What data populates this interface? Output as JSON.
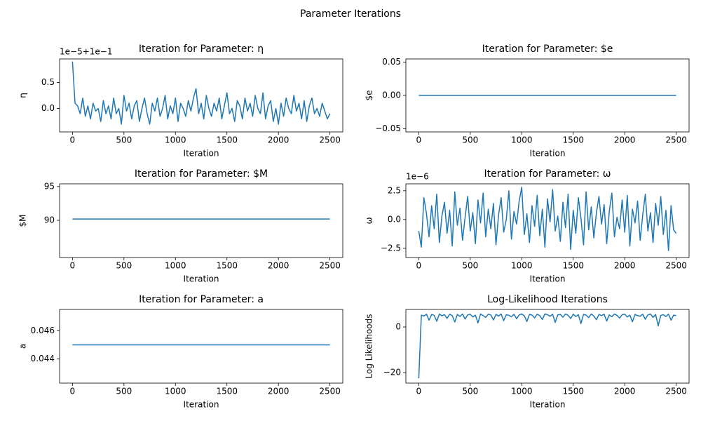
{
  "title": "Parameter Iterations",
  "chart_data": [
    {
      "type": "line",
      "title": "Iteration for Parameter: η",
      "xlabel": "Iteration",
      "ylabel": "η",
      "offset_label": "1e−5+1e−1",
      "color": "#1f77b4",
      "xlim": [
        -125,
        2625
      ],
      "xticks": [
        0,
        500,
        1000,
        1500,
        2000,
        2500
      ],
      "ylim": [
        -0.45,
        0.95
      ],
      "yticks": [
        {
          "value": 0,
          "label": "0.0"
        },
        0.5
      ],
      "x": [
        0,
        25,
        50,
        75,
        100,
        125,
        150,
        175,
        200,
        225,
        250,
        275,
        300,
        325,
        350,
        375,
        400,
        425,
        450,
        475,
        500,
        525,
        550,
        575,
        600,
        625,
        650,
        675,
        700,
        725,
        750,
        775,
        800,
        825,
        850,
        875,
        900,
        925,
        950,
        975,
        1000,
        1025,
        1050,
        1075,
        1100,
        1125,
        1150,
        1175,
        1200,
        1225,
        1250,
        1275,
        1300,
        1325,
        1350,
        1375,
        1400,
        1425,
        1450,
        1475,
        1500,
        1525,
        1550,
        1575,
        1600,
        1625,
        1650,
        1675,
        1700,
        1725,
        1750,
        1775,
        1800,
        1825,
        1850,
        1875,
        1900,
        1925,
        1950,
        1975,
        2000,
        2025,
        2050,
        2075,
        2100,
        2125,
        2150,
        2175,
        2200,
        2225,
        2250,
        2275,
        2300,
        2325,
        2350,
        2375,
        2400,
        2425,
        2450,
        2475,
        2500
      ],
      "values": [
        0.9,
        0.1,
        0.05,
        -0.1,
        0.2,
        -0.15,
        0.05,
        -0.2,
        0.1,
        -0.05,
        0.0,
        -0.25,
        0.15,
        -0.1,
        0.05,
        -0.2,
        0.2,
        -0.1,
        0.0,
        -0.3,
        0.25,
        -0.05,
        0.1,
        -0.2,
        0.05,
        0.15,
        -0.25,
        0.0,
        0.2,
        -0.1,
        -0.3,
        0.1,
        -0.05,
        0.2,
        -0.15,
        0.0,
        0.25,
        -0.2,
        0.05,
        -0.1,
        0.2,
        -0.25,
        0.1,
        0.0,
        -0.15,
        0.15,
        -0.05,
        0.2,
        0.38,
        -0.1,
        0.1,
        -0.2,
        0.25,
        0.0,
        -0.15,
        0.1,
        -0.05,
        0.2,
        -0.2,
        0.05,
        0.3,
        -0.1,
        0.0,
        -0.25,
        0.15,
        0.05,
        -0.2,
        0.2,
        -0.05,
        0.1,
        -0.15,
        0.25,
        0.0,
        -0.1,
        0.3,
        -0.2,
        0.05,
        0.15,
        -0.25,
        0.0,
        -0.3,
        0.1,
        -0.15,
        0.2,
        0.0,
        -0.1,
        0.25,
        -0.05,
        0.1,
        -0.2,
        0.15,
        -0.25,
        0.05,
        0.2,
        -0.1,
        0.0,
        -0.15,
        0.1,
        -0.05,
        -0.2,
        -0.1
      ]
    },
    {
      "type": "line",
      "title": "Iteration for Parameter: $e",
      "xlabel": "Iteration",
      "ylabel": "$e",
      "color": "#1f77b4",
      "xlim": [
        -125,
        2625
      ],
      "xticks": [
        0,
        500,
        1000,
        1500,
        2000,
        2500
      ],
      "ylim": [
        -0.055,
        0.055
      ],
      "yticks": [
        {
          "value": -0.05,
          "label": "−0.05"
        },
        {
          "value": 0,
          "label": "0.00"
        },
        0.05
      ],
      "x": [
        0,
        2500
      ],
      "values": [
        0,
        0
      ]
    },
    {
      "type": "line",
      "title": "Iteration for Parameter: $M",
      "xlabel": "Iteration",
      "ylabel": "$M",
      "color": "#1f77b4",
      "xlim": [
        -125,
        2625
      ],
      "xticks": [
        0,
        500,
        1000,
        1500,
        2000,
        2500
      ],
      "ylim": [
        84.5,
        95.4
      ],
      "yticks": [
        90,
        95
      ],
      "x": [
        0,
        2500
      ],
      "values": [
        90.2,
        90.2
      ]
    },
    {
      "type": "line",
      "title": "Iteration for Parameter: ω",
      "xlabel": "Iteration",
      "ylabel": "ω",
      "offset_label": "1e−6",
      "color": "#1f77b4",
      "xlim": [
        -125,
        2625
      ],
      "xticks": [
        0,
        500,
        1000,
        1500,
        2000,
        2500
      ],
      "ylim": [
        -3.3,
        3.1
      ],
      "yticks": [
        {
          "value": -2.5,
          "label": "−2.5"
        },
        {
          "value": 0,
          "label": "0.0"
        },
        2.5
      ],
      "x": [
        0,
        25,
        50,
        75,
        100,
        125,
        150,
        175,
        200,
        225,
        250,
        275,
        300,
        325,
        350,
        375,
        400,
        425,
        450,
        475,
        500,
        525,
        550,
        575,
        600,
        625,
        650,
        675,
        700,
        725,
        750,
        775,
        800,
        825,
        850,
        875,
        900,
        925,
        950,
        975,
        1000,
        1025,
        1050,
        1075,
        1100,
        1125,
        1150,
        1175,
        1200,
        1225,
        1250,
        1275,
        1300,
        1325,
        1350,
        1375,
        1400,
        1425,
        1450,
        1475,
        1500,
        1525,
        1550,
        1575,
        1600,
        1625,
        1650,
        1675,
        1700,
        1725,
        1750,
        1775,
        1800,
        1825,
        1850,
        1875,
        1900,
        1925,
        1950,
        1975,
        2000,
        2025,
        2050,
        2075,
        2100,
        2125,
        2150,
        2175,
        2200,
        2225,
        2250,
        2275,
        2300,
        2325,
        2350,
        2375,
        2400,
        2425,
        2450,
        2475,
        2500
      ],
      "values": [
        -1.0,
        -2.4,
        1.9,
        0.5,
        -1.5,
        1.2,
        -0.8,
        2.2,
        -2.0,
        0.3,
        1.5,
        -1.2,
        0.8,
        -2.3,
        2.4,
        -0.5,
        1.0,
        -1.8,
        0.2,
        2.0,
        -1.0,
        0.6,
        -2.1,
        1.7,
        -0.3,
        2.3,
        -1.5,
        0.9,
        -0.8,
        1.4,
        -2.2,
        0.4,
        1.9,
        -1.1,
        0.0,
        2.5,
        -1.7,
        0.7,
        -0.4,
        1.6,
        2.8,
        -1.3,
        0.5,
        -2.0,
        1.2,
        -0.6,
        2.1,
        -1.4,
        0.9,
        -2.4,
        1.8,
        -0.2,
        2.6,
        -1.0,
        0.3,
        -1.9,
        1.5,
        -0.7,
        2.2,
        -2.6,
        0.8,
        -1.2,
        1.9,
        0.1,
        -2.2,
        2.4,
        -0.9,
        1.1,
        -1.6,
        0.6,
        2.0,
        -0.4,
        1.3,
        -2.1,
        0.7,
        2.3,
        -1.5,
        0.2,
        -0.8,
        1.7,
        -1.1,
        2.1,
        -2.3,
        0.9,
        -0.3,
        1.6,
        -1.8,
        0.4,
        2.2,
        -1.0,
        0.6,
        -2.0,
        1.4,
        -0.5,
        2.0,
        -1.3,
        0.8,
        -2.7,
        1.2,
        -0.9,
        -1.2
      ]
    },
    {
      "type": "line",
      "title": "Iteration for Parameter: a",
      "xlabel": "Iteration",
      "ylabel": "a",
      "color": "#1f77b4",
      "xlim": [
        -125,
        2625
      ],
      "xticks": [
        0,
        500,
        1000,
        1500,
        2000,
        2500
      ],
      "ylim": [
        0.0423,
        0.0475
      ],
      "yticks": [
        0.044,
        0.046
      ],
      "x": [
        0,
        2500
      ],
      "values": [
        0.045,
        0.045
      ]
    },
    {
      "type": "line",
      "title": "Log-Likelihood Iterations",
      "xlabel": "Iteration",
      "ylabel": "Log Likelihoods",
      "color": "#1f77b4",
      "xlim": [
        -125,
        2625
      ],
      "xticks": [
        0,
        500,
        1000,
        1500,
        2000,
        2500
      ],
      "ylim": [
        -24.6,
        7.7
      ],
      "yticks": [
        {
          "value": -20,
          "label": "−20"
        },
        0
      ],
      "x": [
        0,
        25,
        50,
        75,
        100,
        125,
        150,
        175,
        200,
        225,
        250,
        275,
        300,
        325,
        350,
        375,
        400,
        425,
        450,
        475,
        500,
        525,
        550,
        575,
        600,
        625,
        650,
        675,
        700,
        725,
        750,
        775,
        800,
        825,
        850,
        875,
        900,
        925,
        950,
        975,
        1000,
        1025,
        1050,
        1075,
        1100,
        1125,
        1150,
        1175,
        1200,
        1225,
        1250,
        1275,
        1300,
        1325,
        1350,
        1375,
        1400,
        1425,
        1450,
        1475,
        1500,
        1525,
        1550,
        1575,
        1600,
        1625,
        1650,
        1675,
        1700,
        1725,
        1750,
        1775,
        1800,
        1825,
        1850,
        1875,
        1900,
        1925,
        1950,
        1975,
        2000,
        2025,
        2050,
        2075,
        2100,
        2125,
        2150,
        2175,
        2200,
        2225,
        2250,
        2275,
        2300,
        2325,
        2350,
        2375,
        2400,
        2425,
        2450,
        2475,
        2500
      ],
      "values": [
        -22.5,
        5.2,
        4.8,
        5.6,
        3.0,
        5.5,
        5.1,
        2.5,
        5.7,
        4.9,
        5.4,
        3.8,
        5.6,
        5.0,
        2.2,
        5.5,
        4.6,
        5.7,
        3.5,
        5.3,
        5.6,
        4.4,
        5.2,
        1.8,
        5.7,
        5.0,
        4.2,
        5.6,
        5.3,
        3.1,
        5.5,
        4.8,
        5.7,
        2.8,
        5.4,
        5.1,
        4.5,
        5.6,
        3.6,
        5.3,
        5.7,
        4.9,
        2.4,
        5.5,
        5.2,
        4.0,
        5.6,
        5.0,
        3.3,
        5.7,
        5.4,
        4.7,
        5.6,
        2.0,
        5.3,
        5.5,
        4.3,
        5.7,
        5.1,
        3.7,
        5.6,
        4.6,
        5.4,
        1.5,
        5.5,
        5.2,
        4.1,
        5.7,
        4.8,
        3.2,
        5.5,
        5.0,
        5.6,
        2.6,
        5.3,
        4.5,
        5.7,
        5.1,
        3.9,
        5.4,
        5.6,
        4.4,
        5.2,
        2.3,
        5.5,
        5.0,
        4.7,
        5.6,
        3.4,
        5.3,
        5.7,
        4.2,
        5.5,
        0.5,
        5.1,
        5.4,
        4.6,
        5.6,
        3.0,
        5.2,
        5.0
      ]
    }
  ]
}
